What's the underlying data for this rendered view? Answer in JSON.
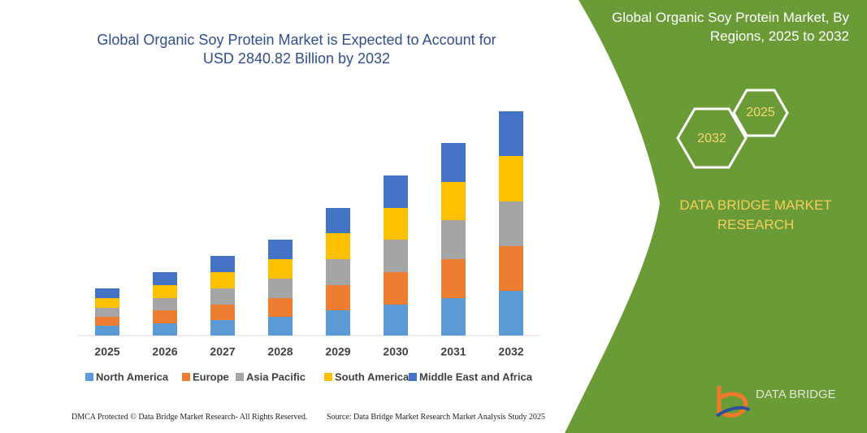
{
  "chart_data": {
    "type": "bar",
    "stacked": true,
    "title": "Global Organic Soy Protein Market is Expected to Account for USD 2840.82 Billion by 2032",
    "categories": [
      "2025",
      "2026",
      "2027",
      "2028",
      "2029",
      "2030",
      "2031",
      "2032"
    ],
    "series": [
      {
        "name": "North America",
        "color": "#5b9bd5",
        "values": [
          12,
          15,
          19,
          23,
          31,
          38,
          46,
          55
        ]
      },
      {
        "name": "Europe",
        "color": "#ed7d31",
        "values": [
          11,
          16,
          19,
          23,
          31,
          40,
          48,
          55
        ]
      },
      {
        "name": "Asia Pacific",
        "color": "#a5a5a5",
        "values": [
          11,
          15,
          20,
          24,
          32,
          40,
          48,
          55
        ]
      },
      {
        "name": "South America",
        "color": "#ffc000",
        "values": [
          12,
          16,
          20,
          24,
          32,
          39,
          47,
          56
        ]
      },
      {
        "name": "Middle East and Africa",
        "color": "#4472c4",
        "values": [
          12,
          16,
          20,
          24,
          31,
          40,
          48,
          55
        ]
      }
    ]
  },
  "panel": {
    "title": "Global Organic Soy Protein Market, By Regions, 2025 to 2032",
    "hex_small": "2025",
    "hex_large": "2032",
    "brand": "DATA BRIDGE MARKET RESEARCH",
    "logo": "DATA BRIDGE"
  },
  "footer": {
    "left": "DMCA Protected © Data Bridge Market Research- All Rights Reserved.",
    "right": "Source: Data Bridge Market Research  Market Analysis Study 2025"
  }
}
